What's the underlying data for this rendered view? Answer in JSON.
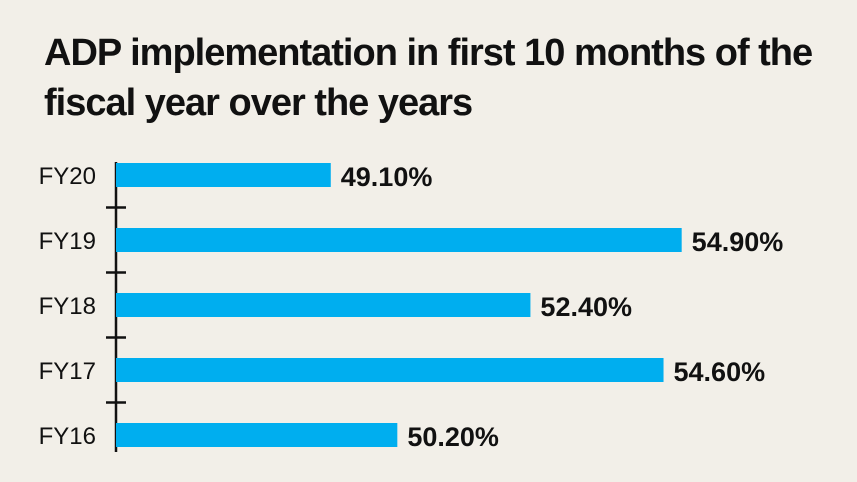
{
  "title": "ADP implementation in first 10 months of the fiscal year over the years",
  "colors": {
    "bar": "#00aeef",
    "axis": "#111111",
    "background": "#f2efe8"
  },
  "chart_data": {
    "type": "bar",
    "orientation": "horizontal",
    "title": "ADP implementation in first 10 months of the fiscal year over the years",
    "xlabel": "",
    "ylabel": "",
    "categories": [
      "FY20",
      "FY19",
      "FY18",
      "FY17",
      "FY16"
    ],
    "values": [
      49.1,
      54.9,
      52.4,
      54.6,
      50.2
    ],
    "value_labels": [
      "49.10%",
      "54.90%",
      "52.40%",
      "54.60%",
      "50.20%"
    ],
    "unit": "%",
    "grid": false,
    "legend": "none"
  }
}
